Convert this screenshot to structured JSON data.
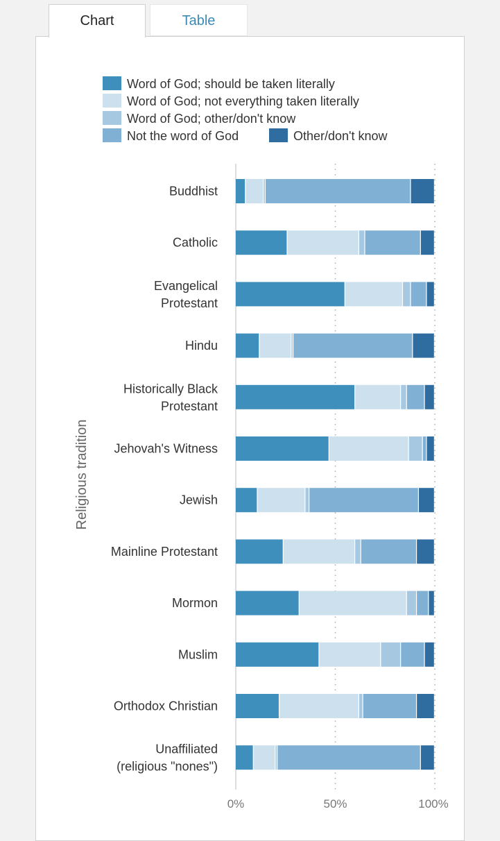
{
  "tabs": [
    {
      "label": "Chart",
      "active": true
    },
    {
      "label": "Table",
      "active": false
    }
  ],
  "colors": {
    "literal": "#3f8fbd",
    "not_literal": "#cde0ed",
    "other_dk_word": "#a7c8e1",
    "not_word": "#80b1d4",
    "other_dk": "#2f6c9f"
  },
  "chart_data": {
    "type": "bar",
    "orientation": "horizontal",
    "stacked": true,
    "ylabel": "Religious tradition",
    "xlim": [
      0,
      100
    ],
    "x_ticks": [
      "0%",
      "50%",
      "100%"
    ],
    "legend_position": "top",
    "grid": "dotted vertical at 50% and 100%",
    "categories": [
      [
        "Buddhist"
      ],
      [
        "Catholic"
      ],
      [
        "Evangelical",
        "Protestant"
      ],
      [
        "Hindu"
      ],
      [
        "Historically Black",
        "Protestant"
      ],
      [
        "Jehovah's Witness"
      ],
      [
        "Jewish"
      ],
      [
        "Mainline Protestant"
      ],
      [
        "Mormon"
      ],
      [
        "Muslim"
      ],
      [
        "Orthodox Christian"
      ],
      [
        "Unaffiliated",
        "(religious \"nones\")"
      ]
    ],
    "series": [
      {
        "name": "Word of God; should be taken literally",
        "color_key": "literal",
        "values": [
          5,
          26,
          55,
          12,
          60,
          47,
          11,
          24,
          32,
          42,
          22,
          9
        ]
      },
      {
        "name": "Word of God; not everything taken literally",
        "color_key": "not_literal",
        "values": [
          9,
          36,
          29,
          16,
          23,
          40,
          24,
          36,
          54,
          31,
          40,
          11
        ]
      },
      {
        "name": "Word of God; other/don't know",
        "color_key": "other_dk_word",
        "values": [
          1,
          3,
          4,
          1,
          3,
          7,
          2,
          3,
          5,
          10,
          2,
          1
        ]
      },
      {
        "name": "Not the word of God",
        "color_key": "not_word",
        "values": [
          73,
          28,
          8,
          60,
          9,
          2,
          55,
          28,
          6,
          12,
          27,
          72
        ]
      },
      {
        "name": "Other/don't know",
        "color_key": "other_dk",
        "values": [
          12,
          7,
          4,
          11,
          5,
          4,
          8,
          9,
          3,
          5,
          9,
          7
        ]
      }
    ]
  }
}
